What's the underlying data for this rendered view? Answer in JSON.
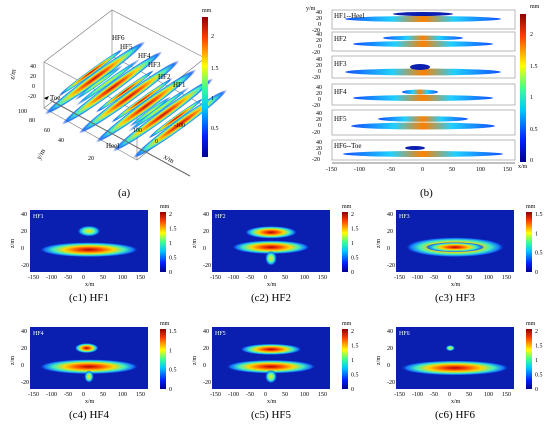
{
  "colors": {
    "bg_blue": "#0a1fb0",
    "outline": "#555555"
  },
  "colorbar": {
    "unit": "mm",
    "a_ticks": [
      "2",
      "1.5",
      "1",
      "0.5"
    ],
    "b_ticks": [
      "2",
      "1.5",
      "1",
      "0.5",
      "0"
    ],
    "c_ticks_2": [
      "2",
      "1.5",
      "1",
      "0.5",
      "0"
    ],
    "c_ticks_15": [
      "1.5",
      "1",
      "0.5",
      "0"
    ]
  },
  "panel_a": {
    "caption": "(a)",
    "hf_labels": [
      "HF6",
      "HF5",
      "HF4",
      "HF3",
      "HF2",
      "HF1"
    ],
    "toe": "Toe",
    "heel": "Heel",
    "z_label": "z/m",
    "z_ticks": [
      "40",
      "20",
      "0",
      "-20"
    ],
    "y_label": "y/m",
    "y_ticks": [
      "100",
      "80",
      "60",
      "40",
      "20"
    ],
    "x_label": "x/m",
    "x_ticks": [
      "100",
      "0",
      "-100"
    ]
  },
  "panel_b": {
    "caption": "(b)",
    "y_label": "y/m",
    "x_label": "x/m",
    "x_ticks": [
      "-150",
      "-100",
      "-50",
      "0",
      "50",
      "100",
      "150"
    ],
    "slice_labels": [
      "HF1--Heel",
      "HF2",
      "HF3",
      "HF4",
      "HF5",
      "HF6--Toe"
    ],
    "slice_ticks": [
      "40",
      "20",
      "0",
      "-20"
    ]
  },
  "panels_c": [
    {
      "caption": "(c1) HF1",
      "tag": "HF1"
    },
    {
      "caption": "(c2) HF2",
      "tag": "HF2"
    },
    {
      "caption": "(c3) HF3",
      "tag": "HF3"
    },
    {
      "caption": "(c4) HF4",
      "tag": "HF4"
    },
    {
      "caption": "(c5) HF5",
      "tag": "HF5"
    },
    {
      "caption": "(c6) HF6",
      "tag": "HF6"
    }
  ],
  "panel_c_axes": {
    "x_label": "x/m",
    "z_label": "z/m",
    "x_ticks": [
      "-150",
      "-100",
      "-50",
      "0",
      "50",
      "100",
      "150"
    ],
    "z_ticks": [
      "40",
      "20",
      "0",
      "-20"
    ]
  }
}
